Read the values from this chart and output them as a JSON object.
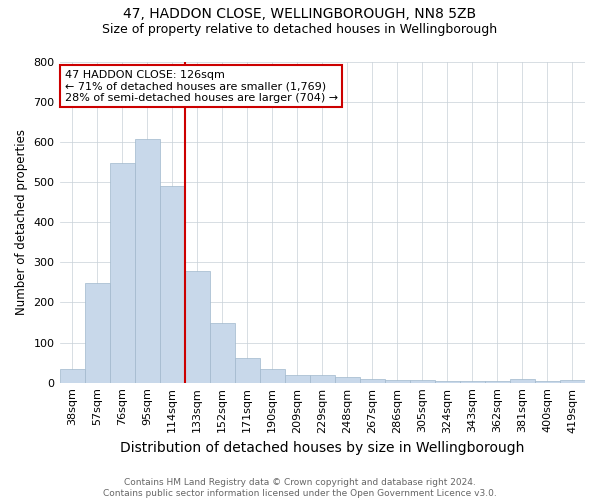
{
  "title": "47, HADDON CLOSE, WELLINGBOROUGH, NN8 5ZB",
  "subtitle": "Size of property relative to detached houses in Wellingborough",
  "xlabel": "Distribution of detached houses by size in Wellingborough",
  "ylabel": "Number of detached properties",
  "categories": [
    "38sqm",
    "57sqm",
    "76sqm",
    "95sqm",
    "114sqm",
    "133sqm",
    "152sqm",
    "171sqm",
    "190sqm",
    "209sqm",
    "229sqm",
    "248sqm",
    "267sqm",
    "286sqm",
    "305sqm",
    "324sqm",
    "343sqm",
    "362sqm",
    "381sqm",
    "400sqm",
    "419sqm"
  ],
  "values": [
    35,
    248,
    548,
    607,
    490,
    278,
    148,
    62,
    33,
    20,
    18,
    13,
    10,
    7,
    6,
    5,
    5,
    4,
    8,
    5,
    7
  ],
  "bar_color": "#c8d8ea",
  "bar_edge_color": "#a0b8cc",
  "red_line_x": 4.5,
  "ylim": [
    0,
    800
  ],
  "yticks": [
    0,
    100,
    200,
    300,
    400,
    500,
    600,
    700,
    800
  ],
  "annotation_text": "47 HADDON CLOSE: 126sqm\n← 71% of detached houses are smaller (1,769)\n28% of semi-detached houses are larger (704) →",
  "annotation_box_color": "#ffffff",
  "annotation_box_edge": "#cc0000",
  "footnote": "Contains HM Land Registry data © Crown copyright and database right 2024.\nContains public sector information licensed under the Open Government Licence v3.0.",
  "background_color": "#ffffff",
  "grid_color": "#c8d0d8",
  "title_fontsize": 10,
  "subtitle_fontsize": 9,
  "xlabel_fontsize": 10,
  "ylabel_fontsize": 8.5,
  "tick_fontsize": 8,
  "footnote_fontsize": 6.5
}
